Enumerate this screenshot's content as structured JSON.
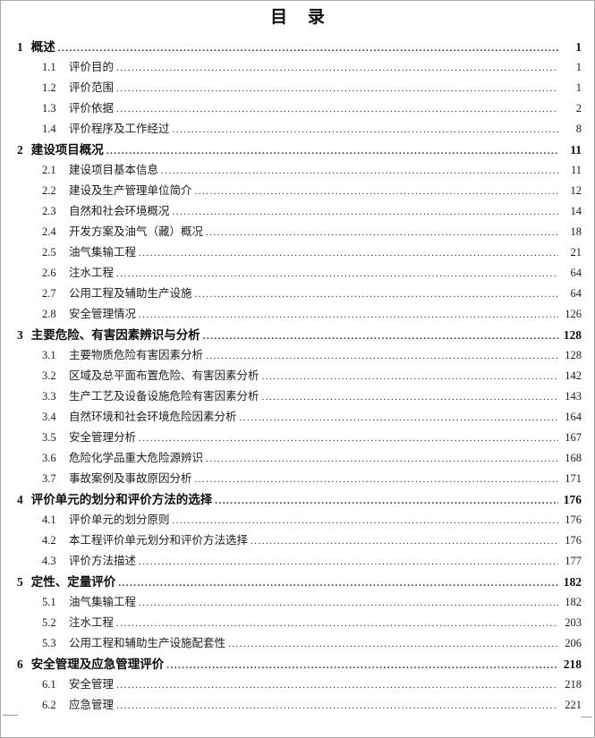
{
  "page": {
    "title": "目 录",
    "background_color": "#ffffff",
    "text_color": "#1a1a1a",
    "border_color": "#a9a9a9"
  },
  "toc": {
    "chapters": [
      {
        "number": "1",
        "title": "概述",
        "page": "1",
        "items": [
          {
            "number": "1.1",
            "title": "评价目的",
            "page": "1"
          },
          {
            "number": "1.2",
            "title": "评价范围",
            "page": "1"
          },
          {
            "number": "1.3",
            "title": "评价依据",
            "page": "2"
          },
          {
            "number": "1.4",
            "title": "评价程序及工作经过",
            "page": "8"
          }
        ]
      },
      {
        "number": "2",
        "title": "建设项目概况",
        "page": "11",
        "items": [
          {
            "number": "2.1",
            "title": "建设项目基本信息",
            "page": "11"
          },
          {
            "number": "2.2",
            "title": "建设及生产管理单位简介",
            "page": "12"
          },
          {
            "number": "2.3",
            "title": "自然和社会环境概况",
            "page": "14"
          },
          {
            "number": "2.4",
            "title": "开发方案及油气（藏）概况",
            "page": "18"
          },
          {
            "number": "2.5",
            "title": "油气集输工程",
            "page": "21"
          },
          {
            "number": "2.6",
            "title": "注水工程",
            "page": "64"
          },
          {
            "number": "2.7",
            "title": "公用工程及辅助生产设施",
            "page": "64"
          },
          {
            "number": "2.8",
            "title": "安全管理情况",
            "page": "126"
          }
        ]
      },
      {
        "number": "3",
        "title": "主要危险、有害因素辨识与分析",
        "page": "128",
        "items": [
          {
            "number": "3.1",
            "title": "主要物质危险有害因素分析",
            "page": "128"
          },
          {
            "number": "3.2",
            "title": "区域及总平面布置危险、有害因素分析",
            "page": "142"
          },
          {
            "number": "3.3",
            "title": "生产工艺及设备设施危险有害因素分析",
            "page": "143"
          },
          {
            "number": "3.4",
            "title": "自然环境和社会环境危险因素分析",
            "page": "164"
          },
          {
            "number": "3.5",
            "title": "安全管理分析",
            "page": "167"
          },
          {
            "number": "3.6",
            "title": "危险化学品重大危险源辨识",
            "page": "168"
          },
          {
            "number": "3.7",
            "title": "事故案例及事故原因分析",
            "page": "171"
          }
        ]
      },
      {
        "number": "4",
        "title": "评价单元的划分和评价方法的选择",
        "page": "176",
        "items": [
          {
            "number": "4.1",
            "title": "评价单元的划分原则",
            "page": "176"
          },
          {
            "number": "4.2",
            "title": "本工程评价单元划分和评价方法选择",
            "page": "176"
          },
          {
            "number": "4.3",
            "title": "评价方法描述",
            "page": "177"
          }
        ]
      },
      {
        "number": "5",
        "title": "定性、定量评价",
        "page": "182",
        "items": [
          {
            "number": "5.1",
            "title": "油气集输工程",
            "page": "182"
          },
          {
            "number": "5.2",
            "title": "注水工程",
            "page": "203"
          },
          {
            "number": "5.3",
            "title": "公用工程和辅助生产设施配套性",
            "page": "206"
          }
        ]
      },
      {
        "number": "6",
        "title": "安全管理及应急管理评价",
        "page": "218",
        "items": [
          {
            "number": "6.1",
            "title": "安全管理",
            "page": "218"
          },
          {
            "number": "6.2",
            "title": "应急管理",
            "page": "221"
          }
        ]
      }
    ]
  }
}
